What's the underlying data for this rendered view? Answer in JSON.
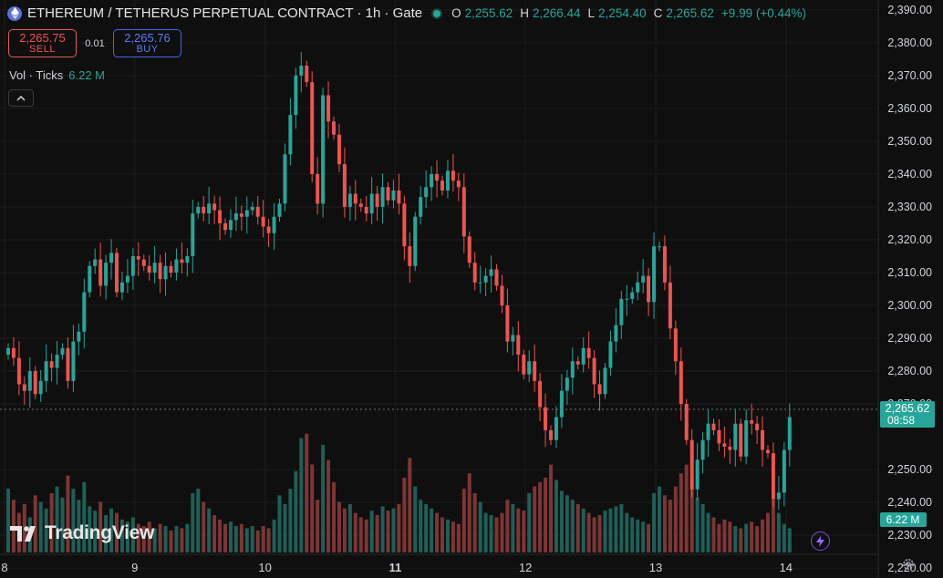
{
  "header": {
    "title": "ETHEREUM / TETHERUS PERPETUAL CONTRACT · 1h · Gate",
    "ohlc": [
      {
        "k": "O",
        "v": "2,255.62"
      },
      {
        "k": "H",
        "v": "2,266.44"
      },
      {
        "k": "L",
        "v": "2,254.40"
      },
      {
        "k": "C",
        "v": "2,265.62"
      }
    ],
    "change": "+9.99 (+0.44%)"
  },
  "trade": {
    "sell_price": "2,265.75",
    "sell_label": "SELL",
    "spread": "0.01",
    "buy_price": "2,265.76",
    "buy_label": "BUY"
  },
  "volume": {
    "label": "Vol · Ticks",
    "value": "6.22 M"
  },
  "brand": "TradingView",
  "price_axis": {
    "ticks": [
      "2,390.00",
      "2,380.00",
      "2,370.00",
      "2,360.00",
      "2,350.00",
      "2,340.00",
      "2,330.00",
      "2,320.00",
      "2,310.00",
      "2,300.00",
      "2,290.00",
      "2,280.00",
      "2,270.00",
      "2,250.00",
      "2,240.00",
      "2,230.00",
      "2,220.00"
    ],
    "last_price": "2,265.62",
    "countdown": "08:58",
    "volume_tag": "6.22 M"
  },
  "time_axis": {
    "ticks": [
      "8",
      "9",
      "10",
      "11",
      "12",
      "13",
      "14"
    ],
    "bold": "11"
  },
  "colors": {
    "up": "#26a69a",
    "down": "#ef5350",
    "vol_up": "#1f5f58",
    "vol_down": "#7d3535",
    "bg": "#0f0f0f",
    "grid": "#1c1c1c"
  },
  "chart_data": {
    "type": "candlestick",
    "price_range": [
      2217,
      2393
    ],
    "time_ticks": [
      {
        "label": "8",
        "index": 0
      },
      {
        "label": "9",
        "index": 24
      },
      {
        "label": "10",
        "index": 48
      },
      {
        "label": "11",
        "index": 72
      },
      {
        "label": "12",
        "index": 96
      },
      {
        "label": "13",
        "index": 120
      },
      {
        "label": "14",
        "index": 144
      }
    ],
    "closes": [
      2287,
      2284,
      2276,
      2274,
      2280,
      2273,
      2277,
      2283,
      2281,
      2285,
      2287,
      2277,
      2289,
      2292,
      2304,
      2312,
      2314,
      2306,
      2313,
      2316,
      2304,
      2307,
      2309,
      2315,
      2314,
      2312,
      2310,
      2313,
      2308,
      2312,
      2310,
      2314,
      2313,
      2315,
      2328,
      2330,
      2328,
      2331,
      2329,
      2325,
      2323,
      2326,
      2328,
      2327,
      2329,
      2330,
      2327,
      2324,
      2322,
      2327,
      2331,
      2346,
      2358,
      2370,
      2373,
      2368,
      2340,
      2331,
      2364,
      2356,
      2352,
      2343,
      2330,
      2334,
      2331,
      2330,
      2328,
      2334,
      2330,
      2336,
      2332,
      2335,
      2331,
      2318,
      2312,
      2327,
      2333,
      2336,
      2340,
      2338,
      2335,
      2341,
      2338,
      2336,
      2321,
      2313,
      2307,
      2307,
      2309,
      2311,
      2306,
      2300,
      2289,
      2291,
      2285,
      2279,
      2283,
      2277,
      2269,
      2262,
      2259,
      2266,
      2274,
      2278,
      2283,
      2282,
      2287,
      2284,
      2276,
      2273,
      2281,
      2289,
      2294,
      2302,
      2302,
      2304,
      2307,
      2309,
      2301,
      2318,
      2318,
      2307,
      2293,
      2283,
      2270,
      2259,
      2244,
      2253,
      2259,
      2264,
      2262,
      2258,
      2257,
      2256,
      2264,
      2254,
      2265,
      2264,
      2262,
      2256,
      2255,
      2241,
      2243,
      2256,
      2266
    ],
    "volume_max_ticks": 6.22,
    "volumes": [
      2.9,
      2.4,
      1.8,
      2.2,
      1.6,
      2.6,
      2.3,
      2.0,
      2.7,
      3.0,
      2.5,
      3.5,
      2.9,
      2.4,
      3.2,
      2.1,
      1.9,
      2.3,
      1.7,
      2.0,
      1.8,
      1.5,
      1.4,
      1.6,
      1.3,
      1.2,
      1.4,
      1.1,
      1.3,
      1.2,
      1.0,
      1.2,
      1.1,
      1.3,
      2.7,
      2.9,
      2.3,
      2.0,
      1.7,
      1.5,
      1.3,
      1.4,
      1.2,
      1.3,
      1.1,
      1.2,
      1.0,
      1.2,
      1.1,
      1.5,
      2.6,
      2.2,
      2.9,
      3.7,
      5.2,
      5.4,
      4.0,
      2.4,
      4.9,
      4.2,
      3.2,
      2.3,
      2.0,
      2.2,
      1.8,
      1.6,
      1.5,
      1.9,
      1.7,
      2.1,
      1.9,
      2.0,
      2.2,
      3.4,
      4.3,
      3.0,
      2.4,
      2.2,
      2.0,
      1.8,
      1.6,
      1.5,
      1.4,
      1.3,
      2.9,
      3.6,
      2.7,
      2.3,
      1.8,
      1.7,
      1.6,
      1.8,
      2.4,
      2.2,
      2.0,
      1.9,
      2.7,
      3.0,
      3.2,
      3.4,
      4.0,
      3.3,
      2.8,
      2.6,
      2.4,
      2.2,
      2.0,
      1.8,
      1.6,
      1.7,
      1.9,
      2.0,
      2.1,
      2.2,
      1.8,
      1.6,
      1.5,
      1.4,
      1.3,
      2.7,
      3.0,
      2.6,
      2.4,
      3.0,
      3.6,
      4.0,
      3.4,
      2.5,
      2.2,
      1.8,
      1.6,
      1.3,
      1.5,
      1.4,
      1.2,
      1.1,
      1.3,
      1.4,
      1.2,
      1.5,
      1.8,
      2.4,
      1.8,
      1.3,
      1.1
    ]
  }
}
